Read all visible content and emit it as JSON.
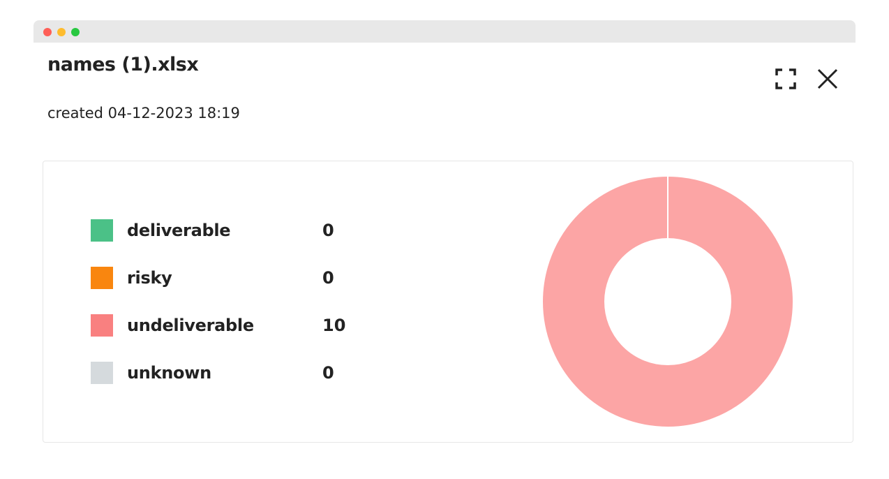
{
  "window": {
    "controls": [
      "close",
      "minimize",
      "maximize"
    ],
    "colors": {
      "close": "#fe5f57",
      "minimize": "#febc2e",
      "maximize": "#28c840"
    }
  },
  "header": {
    "title": "names (1).xlsx",
    "created": "created 04-12-2023 18:19",
    "icons": [
      "fullscreen-icon",
      "close-icon"
    ]
  },
  "chart_data": {
    "type": "pie",
    "donut": true,
    "categories": [
      "deliverable",
      "risky",
      "undeliverable",
      "unknown"
    ],
    "values": [
      0,
      0,
      10,
      0
    ],
    "colors": [
      "#4bc187",
      "#f9860f",
      "#f98080",
      "#d5dadd"
    ],
    "slice_colors": [
      "#4bc187",
      "#f9860f",
      "#fca5a5",
      "#d5dadd"
    ],
    "legend_placement": "left"
  }
}
